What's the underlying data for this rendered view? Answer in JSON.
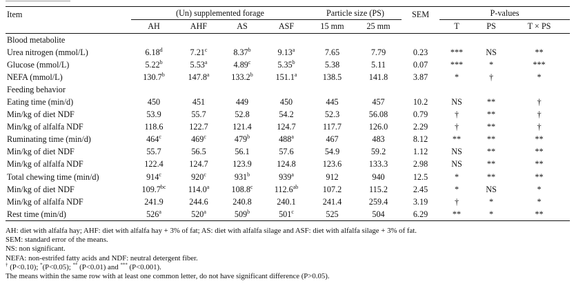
{
  "header": {
    "item": "Item",
    "group_forage": "(Un) supplemented forage",
    "group_ps": "Particle size (PS)",
    "sem": "SEM",
    "group_p": "P-values",
    "cols": [
      "AH",
      "AHF",
      "AS",
      "ASF",
      "15 mm",
      "25 mm"
    ],
    "p_cols": [
      "T",
      "PS",
      "T × PS"
    ]
  },
  "rows": [
    {
      "type": "section",
      "label": "Blood metabolite"
    },
    {
      "type": "data",
      "label": "Urea nitrogen (mmol/L)",
      "v": [
        {
          "v": "6.18",
          "s": "d"
        },
        {
          "v": "7.21",
          "s": "c"
        },
        {
          "v": "8.37",
          "s": "b"
        },
        {
          "v": "9.13",
          "s": "a"
        },
        {
          "v": "7.65",
          "s": ""
        },
        {
          "v": "7.79",
          "s": ""
        }
      ],
      "sem": "0.23",
      "p": [
        "***",
        "NS",
        "**"
      ]
    },
    {
      "type": "data",
      "label": "Glucose (mmol/L)",
      "v": [
        {
          "v": "5.22",
          "s": "b"
        },
        {
          "v": "5.53",
          "s": "a"
        },
        {
          "v": "4.89",
          "s": "c"
        },
        {
          "v": "5.35",
          "s": "b"
        },
        {
          "v": "5.38",
          "s": ""
        },
        {
          "v": "5.11",
          "s": ""
        }
      ],
      "sem": "0.07",
      "p": [
        "***",
        "*",
        "***"
      ]
    },
    {
      "type": "data",
      "label": "NEFA (mmol/L)",
      "v": [
        {
          "v": "130.7",
          "s": "b"
        },
        {
          "v": "147.8",
          "s": "a"
        },
        {
          "v": "133.2",
          "s": "b"
        },
        {
          "v": "151.1",
          "s": "a"
        },
        {
          "v": "138.5",
          "s": ""
        },
        {
          "v": "141.8",
          "s": ""
        }
      ],
      "sem": "3.87",
      "p": [
        "*",
        "†",
        "*"
      ]
    },
    {
      "type": "section",
      "label": "Feeding behavior"
    },
    {
      "type": "data",
      "label": "Eating time (min/d)",
      "v": [
        {
          "v": "450",
          "s": ""
        },
        {
          "v": "451",
          "s": ""
        },
        {
          "v": "449",
          "s": ""
        },
        {
          "v": "450",
          "s": ""
        },
        {
          "v": "445",
          "s": ""
        },
        {
          "v": "457",
          "s": ""
        }
      ],
      "sem": "10.2",
      "p": [
        "NS",
        "**",
        "†"
      ]
    },
    {
      "type": "data",
      "label": "Min/kg of diet NDF",
      "v": [
        {
          "v": "53.9",
          "s": ""
        },
        {
          "v": "55.7",
          "s": ""
        },
        {
          "v": "52.8",
          "s": ""
        },
        {
          "v": "54.2",
          "s": ""
        },
        {
          "v": "52.3",
          "s": ""
        },
        {
          "v": "56.08",
          "s": ""
        }
      ],
      "sem": "0.79",
      "p": [
        "†",
        "**",
        "†"
      ]
    },
    {
      "type": "data",
      "label": "Min/kg of alfalfa NDF",
      "v": [
        {
          "v": "118.6",
          "s": ""
        },
        {
          "v": "122.7",
          "s": ""
        },
        {
          "v": "121.4",
          "s": ""
        },
        {
          "v": "124.7",
          "s": ""
        },
        {
          "v": "117.7",
          "s": ""
        },
        {
          "v": "126.0",
          "s": ""
        }
      ],
      "sem": "2.29",
      "p": [
        "†",
        "**",
        "†"
      ]
    },
    {
      "type": "data",
      "label": "Ruminating time (min/d)",
      "v": [
        {
          "v": "464",
          "s": "c"
        },
        {
          "v": "469",
          "s": "c"
        },
        {
          "v": "479",
          "s": "b"
        },
        {
          "v": "488",
          "s": "a"
        },
        {
          "v": "467",
          "s": ""
        },
        {
          "v": "483",
          "s": ""
        }
      ],
      "sem": "8.12",
      "p": [
        "**",
        "**",
        "**"
      ]
    },
    {
      "type": "data",
      "label": "Min/kg of diet NDF",
      "v": [
        {
          "v": "55.7",
          "s": ""
        },
        {
          "v": "56.5",
          "s": ""
        },
        {
          "v": "56.1",
          "s": ""
        },
        {
          "v": "57.6",
          "s": ""
        },
        {
          "v": "54.9",
          "s": ""
        },
        {
          "v": "59.2",
          "s": ""
        }
      ],
      "sem": "1.12",
      "p": [
        "NS",
        "**",
        "**"
      ]
    },
    {
      "type": "data",
      "label": "Min/kg of alfalfa NDF",
      "v": [
        {
          "v": "122.4",
          "s": ""
        },
        {
          "v": "124.7",
          "s": ""
        },
        {
          "v": "123.9",
          "s": ""
        },
        {
          "v": "124.8",
          "s": ""
        },
        {
          "v": "123.6",
          "s": ""
        },
        {
          "v": "133.3",
          "s": ""
        }
      ],
      "sem": "2.98",
      "p": [
        "NS",
        "**",
        "**"
      ]
    },
    {
      "type": "data",
      "label": "Total chewing time (min/d)",
      "v": [
        {
          "v": "914",
          "s": "c"
        },
        {
          "v": "920",
          "s": "c"
        },
        {
          "v": "931",
          "s": "b"
        },
        {
          "v": "939",
          "s": "a"
        },
        {
          "v": "912",
          "s": ""
        },
        {
          "v": "940",
          "s": ""
        }
      ],
      "sem": "12.5",
      "p": [
        "*",
        "**",
        "**"
      ]
    },
    {
      "type": "data",
      "label": "Min/kg of diet NDF",
      "v": [
        {
          "v": "109.7",
          "s": "bc"
        },
        {
          "v": "114.0",
          "s": "a"
        },
        {
          "v": "108.8",
          "s": "c"
        },
        {
          "v": "112.6",
          "s": "ab"
        },
        {
          "v": "107.2",
          "s": ""
        },
        {
          "v": "115.2",
          "s": ""
        }
      ],
      "sem": "2.45",
      "p": [
        "*",
        "NS",
        "*"
      ]
    },
    {
      "type": "data",
      "label": "Min/kg of alfalfa NDF",
      "v": [
        {
          "v": "241.9",
          "s": ""
        },
        {
          "v": "244.6",
          "s": ""
        },
        {
          "v": "240.8",
          "s": ""
        },
        {
          "v": "240.1",
          "s": ""
        },
        {
          "v": "241.4",
          "s": ""
        },
        {
          "v": "259.4",
          "s": ""
        }
      ],
      "sem": "3.19",
      "p": [
        "†",
        "*",
        "*"
      ]
    },
    {
      "type": "data",
      "label": "Rest time (min/d)",
      "v": [
        {
          "v": "526",
          "s": "a"
        },
        {
          "v": "520",
          "s": "a"
        },
        {
          "v": "509",
          "s": "b"
        },
        {
          "v": "501",
          "s": "c"
        },
        {
          "v": "525",
          "s": ""
        },
        {
          "v": "504",
          "s": ""
        }
      ],
      "sem": "6.29",
      "p": [
        "**",
        "*",
        "**"
      ]
    }
  ],
  "notes": {
    "n1": "AH: diet with alfalfa hay; AHF: diet with alfalfa hay + 3% of fat; AS: diet with alfalfa silage and ASF: diet with alfalfa silage + 3% of fat.",
    "n2": "SEM: standard error of the means.",
    "n3": "NS: non significant.",
    "n4": "NEFA: non-estrifed fatty acids and NDF: neutral detergent fiber.",
    "n5_sup1": "†",
    "n5_t1": " (P<0.10); ",
    "n5_sup2": "*",
    "n5_t2": "(P<0.05); ",
    "n5_sup3": "**",
    "n5_t3": " (P<0.01) and ",
    "n5_sup4": "***",
    "n5_t4": " (P<0.001).",
    "n6": "The means within the same row with at least one common letter, do not have significant difference (P>0.05)."
  }
}
